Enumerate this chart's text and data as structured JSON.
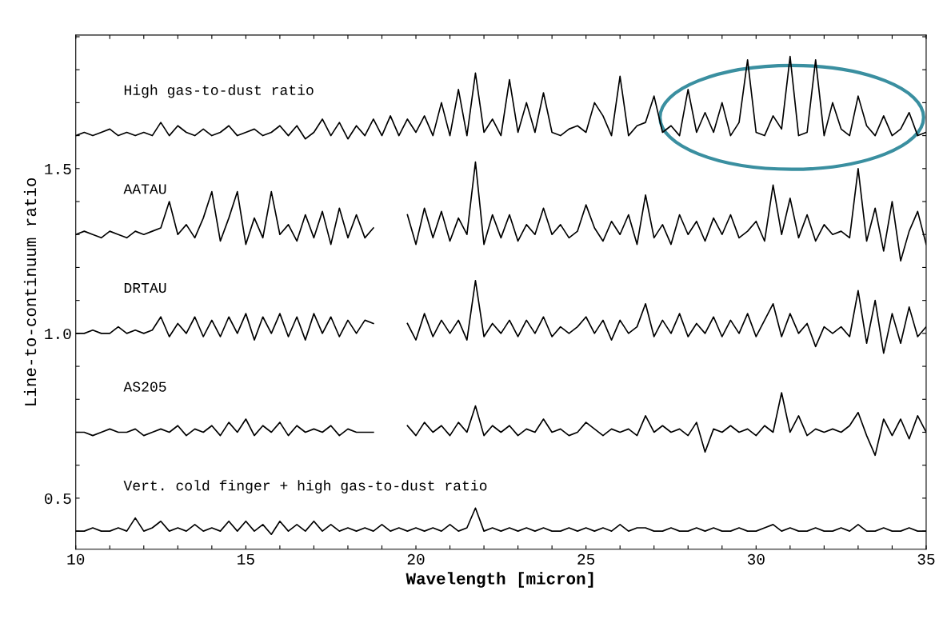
{
  "chart_data": {
    "type": "line",
    "xlabel": "Wavelength [micron]",
    "ylabel": "Line-to-continuum ratio",
    "x": [
      10,
      10.25,
      10.5,
      10.75,
      11,
      11.25,
      11.5,
      11.75,
      12,
      12.25,
      12.5,
      12.75,
      13,
      13.25,
      13.5,
      13.75,
      14,
      14.25,
      14.5,
      14.75,
      15,
      15.25,
      15.5,
      15.75,
      16,
      16.25,
      16.5,
      16.75,
      17,
      17.25,
      17.5,
      17.75,
      18,
      18.25,
      18.5,
      18.75,
      19,
      19.25,
      19.5,
      19.75,
      20,
      20.25,
      20.5,
      20.75,
      21,
      21.25,
      21.5,
      21.75,
      22,
      22.25,
      22.5,
      22.75,
      23,
      23.25,
      23.5,
      23.75,
      24,
      24.25,
      24.5,
      24.75,
      25,
      25.25,
      25.5,
      25.75,
      26,
      26.25,
      26.5,
      26.75,
      27,
      27.25,
      27.5,
      27.75,
      28,
      28.25,
      28.5,
      28.75,
      29,
      29.25,
      29.5,
      29.75,
      30,
      30.25,
      30.5,
      30.75,
      31,
      31.25,
      31.5,
      31.75,
      32,
      32.25,
      32.5,
      32.75,
      33,
      33.25,
      33.5,
      33.75,
      34,
      34.25,
      34.5,
      34.75,
      35
    ],
    "xlim": [
      10,
      35
    ],
    "xticks": [
      10,
      {
        "value": 11,
        "label": null
      },
      {
        "value": 12,
        "label": null
      },
      {
        "value": 13,
        "label": null
      },
      {
        "value": 14,
        "label": null
      },
      15,
      {
        "value": 16,
        "label": null
      },
      {
        "value": 17,
        "label": null
      },
      {
        "value": 18,
        "label": null
      },
      {
        "value": 19,
        "label": null
      },
      20,
      {
        "value": 21,
        "label": null
      },
      {
        "value": 22,
        "label": null
      },
      {
        "value": 23,
        "label": null
      },
      {
        "value": 24,
        "label": null
      },
      25,
      {
        "value": 26,
        "label": null
      },
      {
        "value": 27,
        "label": null
      },
      {
        "value": 28,
        "label": null
      },
      {
        "value": 29,
        "label": null
      },
      30,
      {
        "value": 31,
        "label": null
      },
      {
        "value": 32,
        "label": null
      },
      {
        "value": 33,
        "label": null
      },
      {
        "value": 34,
        "label": null
      },
      35
    ],
    "ylim": [
      0.345,
      1.905
    ],
    "yticks": [
      {
        "value": 0.4,
        "label": null
      },
      {
        "value": 0.5,
        "label": "0.5"
      },
      {
        "value": 0.6,
        "label": null
      },
      {
        "value": 0.7,
        "label": null
      },
      {
        "value": 0.8,
        "label": null
      },
      {
        "value": 0.9,
        "label": null
      },
      {
        "value": 1.0,
        "label": "1.0"
      },
      {
        "value": 1.1,
        "label": null
      },
      {
        "value": 1.2,
        "label": null
      },
      {
        "value": 1.3,
        "label": null
      },
      {
        "value": 1.4,
        "label": null
      },
      {
        "value": 1.5,
        "label": "1.5"
      },
      {
        "value": 1.6,
        "label": null
      },
      {
        "value": 1.7,
        "label": null
      },
      {
        "value": 1.8,
        "label": null
      },
      {
        "value": 1.9,
        "label": null
      }
    ],
    "series": [
      {
        "name": "High gas-to-dust ratio",
        "color": "#000000",
        "values": [
          1.6,
          1.61,
          1.6,
          1.61,
          1.62,
          1.6,
          1.61,
          1.6,
          1.61,
          1.6,
          1.64,
          1.6,
          1.63,
          1.61,
          1.6,
          1.62,
          1.6,
          1.61,
          1.63,
          1.6,
          1.61,
          1.62,
          1.6,
          1.61,
          1.63,
          1.6,
          1.63,
          1.59,
          1.61,
          1.65,
          1.6,
          1.64,
          1.59,
          1.63,
          1.6,
          1.65,
          1.6,
          1.66,
          1.6,
          1.65,
          1.61,
          1.66,
          1.6,
          1.7,
          1.6,
          1.74,
          1.6,
          1.79,
          1.61,
          1.65,
          1.6,
          1.77,
          1.61,
          1.7,
          1.61,
          1.73,
          1.61,
          1.6,
          1.62,
          1.63,
          1.61,
          1.7,
          1.66,
          1.6,
          1.78,
          1.6,
          1.63,
          1.64,
          1.72,
          1.61,
          1.63,
          1.6,
          1.74,
          1.61,
          1.67,
          1.61,
          1.7,
          1.6,
          1.64,
          1.83,
          1.61,
          1.6,
          1.66,
          1.62,
          1.84,
          1.6,
          1.61,
          1.83,
          1.6,
          1.7,
          1.62,
          1.6,
          1.72,
          1.63,
          1.6,
          1.66,
          1.6,
          1.62,
          1.67,
          1.6,
          1.61
        ]
      },
      {
        "name": "AATAU",
        "color": "#000000",
        "values": [
          1.3,
          1.31,
          1.3,
          1.29,
          1.31,
          1.3,
          1.29,
          1.31,
          1.3,
          1.31,
          1.32,
          1.4,
          1.3,
          1.33,
          1.29,
          1.35,
          1.43,
          1.28,
          1.35,
          1.43,
          1.27,
          1.35,
          1.29,
          1.43,
          1.3,
          1.33,
          1.28,
          1.36,
          1.29,
          1.37,
          1.27,
          1.38,
          1.29,
          1.36,
          1.29,
          1.32,
          null,
          null,
          null,
          1.36,
          1.27,
          1.38,
          1.29,
          1.37,
          1.28,
          1.35,
          1.3,
          1.52,
          1.27,
          1.36,
          1.29,
          1.36,
          1.28,
          1.33,
          1.3,
          1.38,
          1.3,
          1.33,
          1.29,
          1.31,
          1.39,
          1.32,
          1.28,
          1.34,
          1.3,
          1.36,
          1.27,
          1.42,
          1.29,
          1.33,
          1.27,
          1.36,
          1.3,
          1.34,
          1.28,
          1.35,
          1.3,
          1.36,
          1.29,
          1.31,
          1.34,
          1.28,
          1.45,
          1.3,
          1.41,
          1.29,
          1.36,
          1.28,
          1.33,
          1.3,
          1.31,
          1.29,
          1.5,
          1.28,
          1.38,
          1.25,
          1.4,
          1.22,
          1.31,
          1.37,
          1.27
        ]
      },
      {
        "name": "DRTAU",
        "color": "#000000",
        "values": [
          1.0,
          1.0,
          1.01,
          1.0,
          1.0,
          1.02,
          1.0,
          1.01,
          1.0,
          1.01,
          1.05,
          0.99,
          1.03,
          1.0,
          1.05,
          0.99,
          1.04,
          0.99,
          1.05,
          1.0,
          1.06,
          0.98,
          1.05,
          1.0,
          1.06,
          0.99,
          1.05,
          0.98,
          1.06,
          1.0,
          1.05,
          0.99,
          1.04,
          1.0,
          1.04,
          1.03,
          null,
          null,
          null,
          1.03,
          0.98,
          1.06,
          0.99,
          1.04,
          1.0,
          1.04,
          0.98,
          1.16,
          0.99,
          1.03,
          1.0,
          1.04,
          0.99,
          1.04,
          1.0,
          1.05,
          0.99,
          1.02,
          1.0,
          1.02,
          1.05,
          1.0,
          1.04,
          0.98,
          1.04,
          1.0,
          1.02,
          1.09,
          0.99,
          1.04,
          1.0,
          1.06,
          0.99,
          1.03,
          1.0,
          1.05,
          0.99,
          1.04,
          1.0,
          1.06,
          0.99,
          1.04,
          1.09,
          0.99,
          1.06,
          1.0,
          1.03,
          0.96,
          1.02,
          1.0,
          1.02,
          0.99,
          1.13,
          0.97,
          1.1,
          0.94,
          1.06,
          0.97,
          1.08,
          0.99,
          1.02
        ]
      },
      {
        "name": "AS205",
        "color": "#000000",
        "values": [
          0.7,
          0.7,
          0.69,
          0.7,
          0.71,
          0.7,
          0.7,
          0.71,
          0.69,
          0.7,
          0.71,
          0.7,
          0.72,
          0.69,
          0.71,
          0.7,
          0.72,
          0.69,
          0.73,
          0.7,
          0.74,
          0.69,
          0.72,
          0.7,
          0.73,
          0.69,
          0.72,
          0.7,
          0.71,
          0.7,
          0.72,
          0.69,
          0.71,
          0.7,
          0.7,
          0.7,
          null,
          null,
          null,
          0.72,
          0.69,
          0.73,
          0.7,
          0.72,
          0.69,
          0.73,
          0.7,
          0.78,
          0.69,
          0.72,
          0.7,
          0.72,
          0.69,
          0.71,
          0.7,
          0.74,
          0.7,
          0.71,
          0.69,
          0.7,
          0.73,
          0.71,
          0.69,
          0.71,
          0.7,
          0.71,
          0.69,
          0.75,
          0.7,
          0.72,
          0.7,
          0.71,
          0.69,
          0.73,
          0.64,
          0.71,
          0.7,
          0.72,
          0.7,
          0.71,
          0.69,
          0.72,
          0.7,
          0.82,
          0.7,
          0.75,
          0.69,
          0.71,
          0.7,
          0.71,
          0.7,
          0.72,
          0.76,
          0.69,
          0.63,
          0.74,
          0.69,
          0.74,
          0.68,
          0.75,
          0.7
        ]
      },
      {
        "name": "Vert. cold finger + high gas-to-dust ratio",
        "color": "#000000",
        "values": [
          0.4,
          0.4,
          0.41,
          0.4,
          0.4,
          0.41,
          0.4,
          0.44,
          0.4,
          0.41,
          0.43,
          0.4,
          0.41,
          0.4,
          0.42,
          0.4,
          0.41,
          0.4,
          0.43,
          0.4,
          0.43,
          0.4,
          0.42,
          0.39,
          0.43,
          0.4,
          0.42,
          0.4,
          0.43,
          0.4,
          0.42,
          0.4,
          0.41,
          0.4,
          0.41,
          0.4,
          0.42,
          0.4,
          0.41,
          0.4,
          0.41,
          0.4,
          0.41,
          0.4,
          0.42,
          0.4,
          0.41,
          0.47,
          0.4,
          0.41,
          0.4,
          0.41,
          0.4,
          0.41,
          0.4,
          0.41,
          0.4,
          0.4,
          0.41,
          0.4,
          0.41,
          0.4,
          0.41,
          0.4,
          0.42,
          0.4,
          0.41,
          0.41,
          0.4,
          0.4,
          0.41,
          0.4,
          0.4,
          0.41,
          0.4,
          0.41,
          0.4,
          0.4,
          0.41,
          0.4,
          0.4,
          0.41,
          0.42,
          0.4,
          0.41,
          0.4,
          0.4,
          0.41,
          0.4,
          0.4,
          0.41,
          0.4,
          0.42,
          0.4,
          0.4,
          0.41,
          0.4,
          0.4,
          0.41,
          0.4,
          0.4
        ]
      }
    ]
  }
}
